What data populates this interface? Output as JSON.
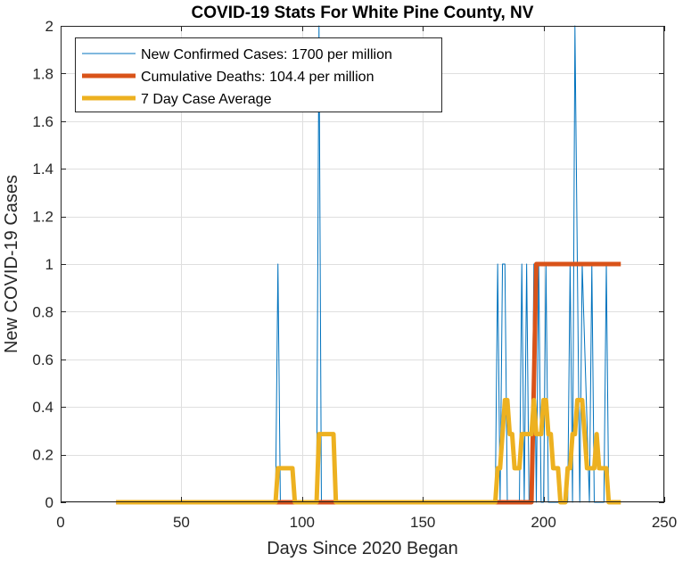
{
  "chart_data": {
    "type": "line",
    "title": "COVID-19 Stats For White Pine County, NV",
    "xlabel": "Days Since 2020 Began",
    "ylabel": "New COVID-19 Cases",
    "xlim": [
      0,
      250
    ],
    "ylim": [
      0,
      2
    ],
    "xticks": [
      0,
      50,
      100,
      150,
      200,
      250
    ],
    "yticks": [
      0,
      0.2,
      0.4,
      0.6,
      0.8,
      1,
      1.2,
      1.4,
      1.6,
      1.8,
      2
    ],
    "grid": true,
    "legend_position": "top-left",
    "series": [
      {
        "name": "New Confirmed Cases: 1700 per million",
        "color": "#0072BD",
        "x": [
          23,
          89,
          90,
          91,
          106,
          107,
          108,
          180,
          181,
          182,
          183,
          184,
          185,
          186,
          190,
          191,
          192,
          193,
          194,
          195,
          196,
          197,
          198,
          199,
          200,
          201,
          202,
          203,
          210,
          211,
          212,
          213,
          214,
          215,
          216,
          219,
          220,
          221,
          222,
          225,
          226,
          227,
          232
        ],
        "y": [
          0,
          0,
          1,
          0,
          0,
          2,
          0,
          0,
          1,
          0,
          1,
          1,
          0,
          0,
          0,
          1,
          0,
          1,
          0,
          0,
          1,
          0,
          1,
          0,
          0,
          1,
          0,
          0,
          0,
          1,
          0,
          2,
          1,
          0,
          1,
          0,
          1,
          0,
          0,
          0,
          1,
          0,
          0
        ]
      },
      {
        "name": "Cumulative Deaths: 104.4 per million",
        "color": "#D95319",
        "x": [
          23,
          195,
          196,
          197,
          198,
          232
        ],
        "y": [
          0,
          0,
          0.5,
          1,
          1,
          1
        ]
      },
      {
        "name": "7 Day Case Average",
        "color": "#EDB120",
        "x": [
          23,
          89,
          90,
          96,
          97,
          106,
          107,
          113,
          114,
          180,
          181,
          182,
          183,
          184,
          185,
          186,
          187,
          188,
          189,
          190,
          191,
          192,
          193,
          194,
          195,
          196,
          197,
          198,
          199,
          200,
          201,
          202,
          203,
          204,
          205,
          206,
          207,
          208,
          209,
          210,
          211,
          212,
          213,
          214,
          215,
          216,
          217,
          218,
          219,
          220,
          221,
          222,
          223,
          224,
          225,
          226,
          227,
          228,
          229,
          230,
          231,
          232
        ],
        "y": [
          0,
          0,
          0.143,
          0.143,
          0,
          0,
          0.286,
          0.286,
          0,
          0,
          0.143,
          0.143,
          0.286,
          0.429,
          0.429,
          0.286,
          0.286,
          0.143,
          0.143,
          0.143,
          0.286,
          0.286,
          0.286,
          0.286,
          0.286,
          0.429,
          0.286,
          0.286,
          0.286,
          0.429,
          0.429,
          0.286,
          0.286,
          0.143,
          0.143,
          0.143,
          0,
          0,
          0,
          0.143,
          0.143,
          0.286,
          0.286,
          0.429,
          0.429,
          0.429,
          0.286,
          0.143,
          0.143,
          0.143,
          0.143,
          0.286,
          0.143,
          0.143,
          0.143,
          0.143,
          0,
          0,
          0,
          0,
          0,
          0
        ]
      }
    ]
  }
}
